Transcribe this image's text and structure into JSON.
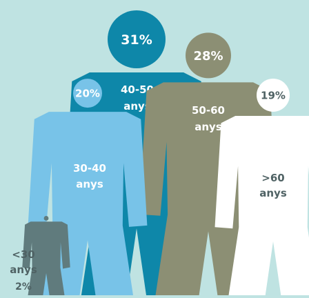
{
  "chart_data": {
    "type": "pictogram",
    "title": "",
    "categories": [
      "<30 anys",
      "30-40 anys",
      "40-50 anys",
      "50-60 anys",
      ">60 anys"
    ],
    "values": [
      2,
      20,
      31,
      28,
      19
    ],
    "value_labels": [
      "2%",
      "20%",
      "31%",
      "28%",
      "19%"
    ],
    "label_lines": [
      [
        "<30",
        "anys"
      ],
      [
        "30-40",
        "anys"
      ],
      [
        "40-50",
        "anys"
      ],
      [
        "50-60",
        "anys"
      ],
      [
        ">60",
        "anys"
      ]
    ],
    "colors": [
      "#607b7d",
      "#78c3e8",
      "#0e87a9",
      "#8c8f74",
      "#ffffff"
    ],
    "background": "#bfe3e2"
  }
}
